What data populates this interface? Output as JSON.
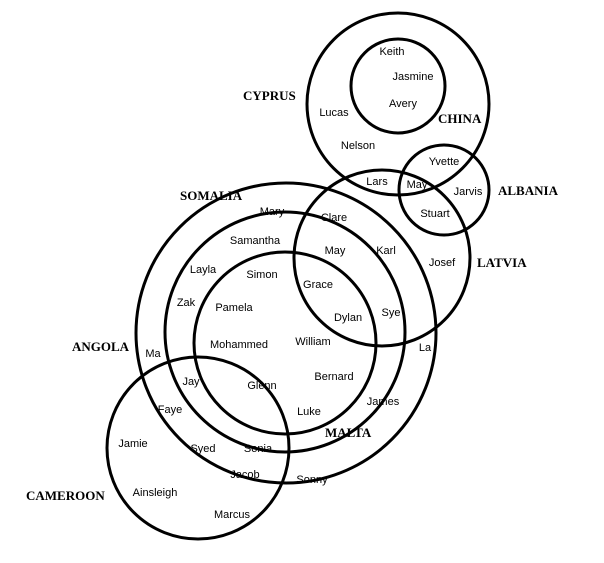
{
  "sets": [
    {
      "key": "cyprus",
      "name": "CYPRUS"
    },
    {
      "key": "china",
      "name": "CHINA"
    },
    {
      "key": "albania",
      "name": "ALBANIA"
    },
    {
      "key": "latvia",
      "name": "LATVIA"
    },
    {
      "key": "somalia",
      "name": "SOMALIA"
    },
    {
      "key": "angola",
      "name": "ANGOLA"
    },
    {
      "key": "malta",
      "name": "MALTA"
    },
    {
      "key": "cameroon",
      "name": "CAMEROON"
    }
  ],
  "members": [
    {
      "key": "keith",
      "name": "Keith"
    },
    {
      "key": "jasmine",
      "name": "Jasmine"
    },
    {
      "key": "avery",
      "name": "Avery"
    },
    {
      "key": "lucas",
      "name": "Lucas"
    },
    {
      "key": "nelson",
      "name": "Nelson"
    },
    {
      "key": "yvette",
      "name": "Yvette"
    },
    {
      "key": "lars",
      "name": "Lars"
    },
    {
      "key": "may-1",
      "name": "May"
    },
    {
      "key": "jarvis",
      "name": "Jarvis"
    },
    {
      "key": "stuart",
      "name": "Stuart"
    },
    {
      "key": "mary",
      "name": "Mary"
    },
    {
      "key": "clare",
      "name": "Clare"
    },
    {
      "key": "samantha",
      "name": "Samantha"
    },
    {
      "key": "may-2",
      "name": "May"
    },
    {
      "key": "karl",
      "name": "Karl"
    },
    {
      "key": "layla",
      "name": "Layla"
    },
    {
      "key": "simon",
      "name": "Simon"
    },
    {
      "key": "josef",
      "name": "Josef"
    },
    {
      "key": "grace",
      "name": "Grace"
    },
    {
      "key": "zak",
      "name": "Zak"
    },
    {
      "key": "pamela",
      "name": "Pamela"
    },
    {
      "key": "dylan",
      "name": "Dylan"
    },
    {
      "key": "sye",
      "name": "Sye"
    },
    {
      "key": "mohammed",
      "name": "Mohammed"
    },
    {
      "key": "william",
      "name": "William"
    },
    {
      "key": "ma",
      "name": "Ma"
    },
    {
      "key": "la",
      "name": "La"
    },
    {
      "key": "bernard",
      "name": "Bernard"
    },
    {
      "key": "jay",
      "name": "Jay"
    },
    {
      "key": "glenn",
      "name": "Glenn"
    },
    {
      "key": "james",
      "name": "James"
    },
    {
      "key": "faye",
      "name": "Faye"
    },
    {
      "key": "luke",
      "name": "Luke"
    },
    {
      "key": "jamie",
      "name": "Jamie"
    },
    {
      "key": "syed",
      "name": "Syed"
    },
    {
      "key": "sonia",
      "name": "Sonia"
    },
    {
      "key": "jacob",
      "name": "Jacob"
    },
    {
      "key": "sonny",
      "name": "Sonny"
    },
    {
      "key": "ainsleigh",
      "name": "Ainsleigh"
    },
    {
      "key": "marcus",
      "name": "Marcus"
    }
  ]
}
